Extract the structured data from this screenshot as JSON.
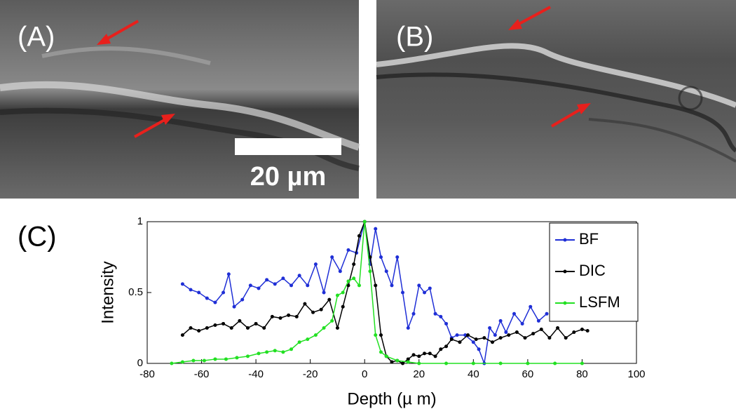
{
  "panels": {
    "a": "(A)",
    "b": "(B)",
    "c": "(C)"
  },
  "scale_bar": "20 µm",
  "chart_data": {
    "type": "line",
    "xlabel": "Depth (µ m)",
    "ylabel": "Intensity",
    "xlim": [
      -80,
      100
    ],
    "xticks": [
      -80,
      -60,
      -40,
      -20,
      0,
      20,
      40,
      60,
      80,
      100
    ],
    "ylim": [
      0,
      1
    ],
    "yticks": [
      0,
      0.5,
      1
    ],
    "legend": "upper right",
    "series": [
      {
        "name": "BF",
        "color": "#1f2fd6",
        "x": [
          -67,
          -64,
          -61,
          -58,
          -55,
          -52,
          -50,
          -48,
          -45,
          -42,
          -39,
          -36,
          -33,
          -30,
          -27,
          -24,
          -21,
          -18,
          -15,
          -12,
          -9,
          -6,
          -3,
          0,
          2,
          4,
          6,
          8,
          10,
          12,
          14,
          16,
          18,
          20,
          22,
          24,
          26,
          28,
          30,
          32,
          34,
          37,
          40,
          42,
          44,
          46,
          48,
          50,
          52,
          55,
          58,
          61,
          64,
          67
        ],
        "values": [
          0.56,
          0.52,
          0.5,
          0.46,
          0.43,
          0.5,
          0.63,
          0.4,
          0.45,
          0.55,
          0.53,
          0.59,
          0.56,
          0.6,
          0.55,
          0.62,
          0.55,
          0.7,
          0.5,
          0.75,
          0.65,
          0.8,
          0.78,
          1.0,
          0.7,
          0.95,
          0.75,
          0.65,
          0.55,
          0.75,
          0.5,
          0.25,
          0.35,
          0.55,
          0.5,
          0.53,
          0.35,
          0.33,
          0.28,
          0.18,
          0.2,
          0.2,
          0.15,
          0.1,
          0.0,
          0.25,
          0.2,
          0.3,
          0.22,
          0.35,
          0.28,
          0.4,
          0.3,
          0.35
        ]
      },
      {
        "name": "DIC",
        "color": "#000000",
        "x": [
          -67,
          -64,
          -61,
          -58,
          -55,
          -52,
          -49,
          -46,
          -43,
          -40,
          -37,
          -34,
          -31,
          -28,
          -25,
          -22,
          -19,
          -16,
          -13,
          -10,
          -8,
          -6,
          -4,
          -2,
          0,
          2,
          4,
          6,
          8,
          10,
          12,
          14,
          16,
          18,
          20,
          22,
          24,
          26,
          28,
          30,
          32,
          35,
          38,
          41,
          44,
          47,
          50,
          53,
          56,
          59,
          62,
          65,
          68,
          71,
          74,
          77,
          80,
          82
        ],
        "values": [
          0.2,
          0.25,
          0.23,
          0.25,
          0.27,
          0.28,
          0.25,
          0.3,
          0.25,
          0.28,
          0.25,
          0.33,
          0.32,
          0.34,
          0.33,
          0.42,
          0.36,
          0.38,
          0.45,
          0.25,
          0.4,
          0.55,
          0.7,
          0.9,
          1.0,
          0.75,
          0.55,
          0.2,
          0.05,
          0.01,
          0.02,
          0.0,
          0.03,
          0.06,
          0.05,
          0.07,
          0.07,
          0.05,
          0.1,
          0.12,
          0.17,
          0.15,
          0.2,
          0.17,
          0.18,
          0.15,
          0.18,
          0.2,
          0.22,
          0.18,
          0.21,
          0.24,
          0.18,
          0.25,
          0.18,
          0.22,
          0.24,
          0.23
        ]
      },
      {
        "name": "LSFM",
        "color": "#22e022",
        "x": [
          -71,
          -67,
          -63,
          -59,
          -55,
          -51,
          -47,
          -43,
          -39,
          -36,
          -33,
          -30,
          -27,
          -24,
          -21,
          -18,
          -15,
          -12,
          -10,
          -8,
          -6,
          -4,
          -2,
          0,
          2,
          4,
          6,
          8,
          12,
          16,
          20,
          30,
          40,
          50,
          60,
          70,
          80
        ],
        "values": [
          0.0,
          0.01,
          0.02,
          0.02,
          0.03,
          0.03,
          0.04,
          0.05,
          0.07,
          0.08,
          0.09,
          0.08,
          0.1,
          0.15,
          0.17,
          0.2,
          0.25,
          0.3,
          0.48,
          0.5,
          0.58,
          0.6,
          0.55,
          1.0,
          0.65,
          0.2,
          0.08,
          0.05,
          0.02,
          0.01,
          0.0,
          0.0,
          0.0,
          0.0,
          0.0,
          0.0,
          0.0
        ]
      }
    ]
  }
}
